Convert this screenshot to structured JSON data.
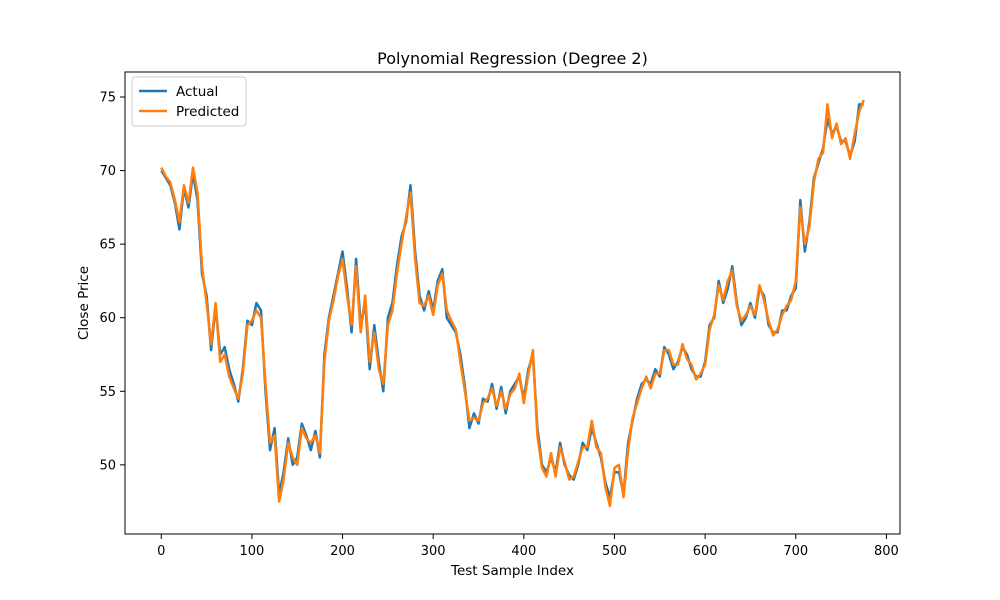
{
  "chart_data": {
    "type": "line",
    "title": "Polynomial Regression (Degree 2)",
    "xlabel": "Test Sample Index",
    "ylabel": "Close Price",
    "xlim": [
      -40,
      815
    ],
    "ylim": [
      45.3,
      76.7
    ],
    "xticks": [
      0,
      100,
      200,
      300,
      400,
      500,
      600,
      700,
      800
    ],
    "yticks": [
      50,
      55,
      60,
      65,
      70,
      75
    ],
    "grid": false,
    "legend_position": "upper-left",
    "series": [
      {
        "name": "Actual",
        "color": "#1f77b4",
        "points": [
          [
            0,
            70.0
          ],
          [
            5,
            69.5
          ],
          [
            10,
            69.0
          ],
          [
            15,
            67.8
          ],
          [
            20,
            66.0
          ],
          [
            25,
            68.8
          ],
          [
            30,
            67.5
          ],
          [
            35,
            69.8
          ],
          [
            40,
            68.0
          ],
          [
            45,
            63.0
          ],
          [
            50,
            61.5
          ],
          [
            55,
            57.8
          ],
          [
            60,
            60.8
          ],
          [
            65,
            57.5
          ],
          [
            70,
            58.0
          ],
          [
            75,
            56.5
          ],
          [
            80,
            55.5
          ],
          [
            85,
            54.3
          ],
          [
            90,
            56.5
          ],
          [
            95,
            59.8
          ],
          [
            100,
            59.5
          ],
          [
            105,
            61.0
          ],
          [
            110,
            60.5
          ],
          [
            115,
            55.0
          ],
          [
            120,
            51.0
          ],
          [
            125,
            52.5
          ],
          [
            130,
            48.0
          ],
          [
            135,
            49.5
          ],
          [
            140,
            51.8
          ],
          [
            145,
            50.0
          ],
          [
            150,
            50.5
          ],
          [
            155,
            52.8
          ],
          [
            160,
            52.0
          ],
          [
            165,
            51.0
          ],
          [
            170,
            52.3
          ],
          [
            175,
            50.5
          ],
          [
            180,
            57.5
          ],
          [
            185,
            60.0
          ],
          [
            190,
            61.5
          ],
          [
            195,
            63.0
          ],
          [
            200,
            64.5
          ],
          [
            205,
            62.0
          ],
          [
            210,
            59.0
          ],
          [
            215,
            64.0
          ],
          [
            220,
            59.5
          ],
          [
            225,
            61.0
          ],
          [
            230,
            56.5
          ],
          [
            235,
            59.5
          ],
          [
            240,
            57.0
          ],
          [
            245,
            55.0
          ],
          [
            250,
            60.0
          ],
          [
            255,
            61.0
          ],
          [
            260,
            63.5
          ],
          [
            265,
            65.5
          ],
          [
            270,
            66.5
          ],
          [
            275,
            69.0
          ],
          [
            280,
            64.5
          ],
          [
            285,
            61.5
          ],
          [
            290,
            60.5
          ],
          [
            295,
            61.8
          ],
          [
            300,
            60.5
          ],
          [
            305,
            62.5
          ],
          [
            310,
            63.3
          ],
          [
            315,
            60.0
          ],
          [
            320,
            59.5
          ],
          [
            325,
            59.0
          ],
          [
            330,
            57.5
          ],
          [
            335,
            55.3
          ],
          [
            340,
            52.5
          ],
          [
            345,
            53.5
          ],
          [
            350,
            52.8
          ],
          [
            355,
            54.5
          ],
          [
            360,
            54.3
          ],
          [
            365,
            55.5
          ],
          [
            370,
            53.8
          ],
          [
            375,
            55.3
          ],
          [
            380,
            53.5
          ],
          [
            385,
            55.0
          ],
          [
            390,
            55.5
          ],
          [
            395,
            56.0
          ],
          [
            400,
            54.5
          ],
          [
            405,
            56.5
          ],
          [
            410,
            57.5
          ],
          [
            415,
            52.5
          ],
          [
            420,
            50.0
          ],
          [
            425,
            49.5
          ],
          [
            430,
            50.5
          ],
          [
            435,
            49.5
          ],
          [
            440,
            51.5
          ],
          [
            445,
            50.0
          ],
          [
            450,
            49.3
          ],
          [
            455,
            49.0
          ],
          [
            460,
            50.0
          ],
          [
            465,
            51.5
          ],
          [
            470,
            51.0
          ],
          [
            475,
            52.5
          ],
          [
            480,
            51.5
          ],
          [
            485,
            50.5
          ],
          [
            490,
            48.8
          ],
          [
            495,
            47.8
          ],
          [
            500,
            49.5
          ],
          [
            505,
            49.5
          ],
          [
            510,
            48.0
          ],
          [
            515,
            51.5
          ],
          [
            520,
            53.0
          ],
          [
            525,
            54.5
          ],
          [
            530,
            55.5
          ],
          [
            535,
            55.8
          ],
          [
            540,
            55.5
          ],
          [
            545,
            56.5
          ],
          [
            550,
            56.0
          ],
          [
            555,
            58.0
          ],
          [
            560,
            57.5
          ],
          [
            565,
            56.5
          ],
          [
            570,
            57.0
          ],
          [
            575,
            58.0
          ],
          [
            580,
            57.5
          ],
          [
            585,
            56.5
          ],
          [
            590,
            56.0
          ],
          [
            595,
            56.0
          ],
          [
            600,
            57.0
          ],
          [
            605,
            59.5
          ],
          [
            610,
            60.0
          ],
          [
            615,
            62.5
          ],
          [
            620,
            61.0
          ],
          [
            625,
            62.0
          ],
          [
            630,
            63.5
          ],
          [
            635,
            61.0
          ],
          [
            640,
            59.5
          ],
          [
            645,
            60.0
          ],
          [
            650,
            61.0
          ],
          [
            655,
            60.0
          ],
          [
            660,
            62.0
          ],
          [
            665,
            61.5
          ],
          [
            670,
            59.5
          ],
          [
            675,
            59.0
          ],
          [
            680,
            59.0
          ],
          [
            685,
            60.5
          ],
          [
            690,
            60.5
          ],
          [
            695,
            61.5
          ],
          [
            700,
            62.0
          ],
          [
            705,
            68.0
          ],
          [
            710,
            64.5
          ],
          [
            715,
            66.5
          ],
          [
            720,
            69.5
          ],
          [
            725,
            70.5
          ],
          [
            730,
            71.5
          ],
          [
            735,
            73.5
          ],
          [
            740,
            72.5
          ],
          [
            745,
            73.0
          ],
          [
            750,
            72.0
          ],
          [
            755,
            72.0
          ],
          [
            760,
            71.0
          ],
          [
            765,
            72.0
          ],
          [
            770,
            74.5
          ],
          [
            775,
            74.5
          ]
        ]
      },
      {
        "name": "Predicted",
        "color": "#ff7f0e",
        "points": [
          [
            0,
            70.2
          ],
          [
            5,
            69.6
          ],
          [
            10,
            69.2
          ],
          [
            15,
            68.0
          ],
          [
            20,
            66.5
          ],
          [
            25,
            69.0
          ],
          [
            30,
            67.8
          ],
          [
            35,
            70.2
          ],
          [
            40,
            68.5
          ],
          [
            45,
            63.5
          ],
          [
            50,
            61.0
          ],
          [
            55,
            58.2
          ],
          [
            60,
            61.0
          ],
          [
            65,
            57.0
          ],
          [
            70,
            57.5
          ],
          [
            75,
            56.0
          ],
          [
            80,
            55.2
          ],
          [
            85,
            54.5
          ],
          [
            90,
            56.2
          ],
          [
            95,
            59.5
          ],
          [
            100,
            59.8
          ],
          [
            105,
            60.5
          ],
          [
            110,
            60.0
          ],
          [
            115,
            55.5
          ],
          [
            120,
            51.5
          ],
          [
            125,
            52.0
          ],
          [
            130,
            47.5
          ],
          [
            135,
            49.0
          ],
          [
            140,
            51.5
          ],
          [
            145,
            50.5
          ],
          [
            150,
            50.0
          ],
          [
            155,
            52.5
          ],
          [
            160,
            51.8
          ],
          [
            165,
            51.5
          ],
          [
            170,
            52.0
          ],
          [
            175,
            50.8
          ],
          [
            180,
            57.0
          ],
          [
            185,
            59.8
          ],
          [
            190,
            61.2
          ],
          [
            195,
            62.8
          ],
          [
            200,
            64.0
          ],
          [
            205,
            61.5
          ],
          [
            210,
            59.5
          ],
          [
            215,
            63.5
          ],
          [
            220,
            59.0
          ],
          [
            225,
            61.5
          ],
          [
            230,
            57.0
          ],
          [
            235,
            59.0
          ],
          [
            240,
            56.5
          ],
          [
            245,
            55.5
          ],
          [
            250,
            59.5
          ],
          [
            255,
            60.5
          ],
          [
            260,
            63.0
          ],
          [
            265,
            65.0
          ],
          [
            270,
            66.8
          ],
          [
            275,
            68.5
          ],
          [
            280,
            64.0
          ],
          [
            285,
            61.0
          ],
          [
            290,
            60.8
          ],
          [
            295,
            61.5
          ],
          [
            300,
            60.2
          ],
          [
            305,
            62.2
          ],
          [
            310,
            63.0
          ],
          [
            315,
            60.5
          ],
          [
            320,
            59.8
          ],
          [
            325,
            59.2
          ],
          [
            330,
            57.0
          ],
          [
            335,
            55.0
          ],
          [
            340,
            53.0
          ],
          [
            345,
            53.2
          ],
          [
            350,
            53.0
          ],
          [
            355,
            54.2
          ],
          [
            360,
            54.5
          ],
          [
            365,
            55.2
          ],
          [
            370,
            54.0
          ],
          [
            375,
            55.0
          ],
          [
            380,
            53.8
          ],
          [
            385,
            54.8
          ],
          [
            390,
            55.2
          ],
          [
            395,
            56.2
          ],
          [
            400,
            54.2
          ],
          [
            405,
            56.2
          ],
          [
            410,
            57.8
          ],
          [
            415,
            52.0
          ],
          [
            420,
            49.8
          ],
          [
            425,
            49.2
          ],
          [
            430,
            50.8
          ],
          [
            435,
            49.2
          ],
          [
            440,
            51.2
          ],
          [
            445,
            50.2
          ],
          [
            450,
            49.0
          ],
          [
            455,
            49.2
          ],
          [
            460,
            50.2
          ],
          [
            465,
            51.2
          ],
          [
            470,
            51.2
          ],
          [
            475,
            53.0
          ],
          [
            480,
            51.2
          ],
          [
            485,
            50.8
          ],
          [
            490,
            48.5
          ],
          [
            495,
            47.2
          ],
          [
            500,
            49.8
          ],
          [
            505,
            50.0
          ],
          [
            510,
            47.8
          ],
          [
            515,
            51.0
          ],
          [
            520,
            53.2
          ],
          [
            525,
            54.2
          ],
          [
            530,
            55.2
          ],
          [
            535,
            56.0
          ],
          [
            540,
            55.2
          ],
          [
            545,
            56.2
          ],
          [
            550,
            56.2
          ],
          [
            555,
            57.8
          ],
          [
            560,
            57.8
          ],
          [
            565,
            56.8
          ],
          [
            570,
            56.8
          ],
          [
            575,
            58.2
          ],
          [
            580,
            57.2
          ],
          [
            585,
            56.8
          ],
          [
            590,
            55.8
          ],
          [
            595,
            56.2
          ],
          [
            600,
            56.8
          ],
          [
            605,
            59.2
          ],
          [
            610,
            60.2
          ],
          [
            615,
            62.2
          ],
          [
            620,
            61.2
          ],
          [
            625,
            62.5
          ],
          [
            630,
            63.2
          ],
          [
            635,
            60.8
          ],
          [
            640,
            59.8
          ],
          [
            645,
            60.2
          ],
          [
            650,
            60.8
          ],
          [
            655,
            60.2
          ],
          [
            660,
            62.2
          ],
          [
            665,
            61.2
          ],
          [
            670,
            59.8
          ],
          [
            675,
            58.8
          ],
          [
            680,
            59.2
          ],
          [
            685,
            60.2
          ],
          [
            690,
            60.8
          ],
          [
            695,
            61.2
          ],
          [
            700,
            62.5
          ],
          [
            705,
            67.5
          ],
          [
            710,
            65.0
          ],
          [
            715,
            66.2
          ],
          [
            720,
            69.2
          ],
          [
            725,
            70.8
          ],
          [
            730,
            71.2
          ],
          [
            735,
            74.5
          ],
          [
            740,
            72.2
          ],
          [
            745,
            73.2
          ],
          [
            750,
            71.8
          ],
          [
            755,
            72.2
          ],
          [
            760,
            70.8
          ],
          [
            765,
            72.5
          ],
          [
            770,
            74.0
          ],
          [
            775,
            74.8
          ]
        ]
      }
    ]
  }
}
